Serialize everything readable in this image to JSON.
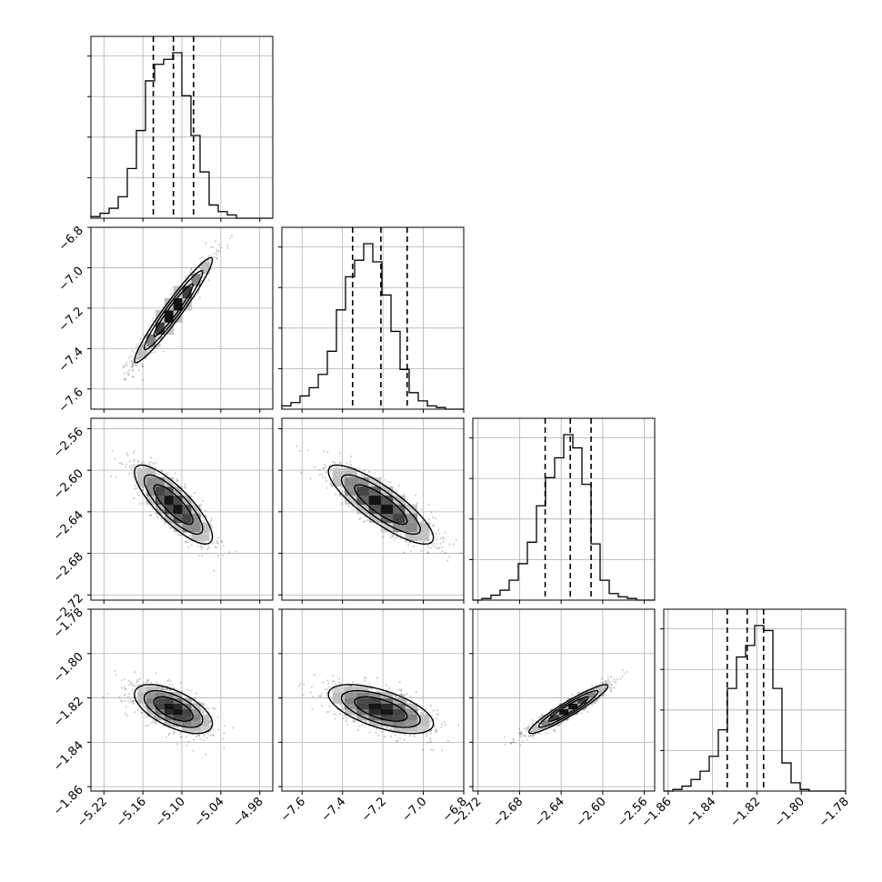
{
  "chart_data": {
    "type": "corner",
    "grid": true,
    "parameters": [
      {
        "index": 0,
        "range": [
          -5.24,
          -4.96
        ],
        "ticks": [
          -5.22,
          -5.16,
          -5.1,
          -5.04,
          -4.98
        ],
        "tick_labels": [
          "−5.22",
          "−5.16",
          "−5.10",
          "−5.04",
          "−4.98"
        ],
        "quantiles": [
          -5.144,
          -5.113,
          -5.082
        ]
      },
      {
        "index": 1,
        "range": [
          -7.7,
          -6.8
        ],
        "ticks": [
          -7.6,
          -7.4,
          -7.2,
          -7.0,
          -6.8
        ],
        "tick_labels": [
          "−7.6",
          "−7.4",
          "−7.2",
          "−7.0",
          "−6.8"
        ],
        "quantiles": [
          -7.35,
          -7.21,
          -7.08
        ]
      },
      {
        "index": 2,
        "range": [
          -2.725,
          -2.55
        ],
        "ticks": [
          -2.72,
          -2.68,
          -2.64,
          -2.6,
          -2.56
        ],
        "tick_labels": [
          "−2.72",
          "−2.68",
          "−2.64",
          "−2.60",
          "−2.56"
        ],
        "quantiles": [
          -2.6554,
          -2.6312,
          -2.6112
        ]
      },
      {
        "index": 3,
        "range": [
          -1.862,
          -1.78
        ],
        "ticks": [
          -1.86,
          -1.84,
          -1.82,
          -1.8,
          -1.78
        ],
        "tick_labels": [
          "−1.86",
          "−1.84",
          "−1.82",
          "−1.80",
          "−1.78"
        ],
        "quantiles": [
          -1.8334,
          -1.8244,
          -1.817
        ]
      }
    ],
    "histograms": [
      {
        "param": 0,
        "bin_start": -5.24,
        "bin_width": 0.014,
        "counts": [
          0.01,
          0.03,
          0.06,
          0.13,
          0.3,
          0.53,
          0.83,
          0.93,
          0.96,
          1.0,
          0.74,
          0.5,
          0.28,
          0.08,
          0.04,
          0.02,
          0.0,
          0.0,
          0.0,
          0.0
        ]
      },
      {
        "param": 1,
        "bin_start": -7.7,
        "bin_width": 0.045,
        "counts": [
          0.02,
          0.04,
          0.08,
          0.13,
          0.21,
          0.35,
          0.6,
          0.8,
          0.9,
          1.0,
          0.89,
          0.69,
          0.47,
          0.24,
          0.1,
          0.05,
          0.02,
          0.01,
          0.0,
          0.0
        ]
      },
      {
        "param": 2,
        "bin_start": -2.725,
        "bin_width": 0.00875,
        "counts": [
          0.0,
          0.01,
          0.03,
          0.06,
          0.12,
          0.22,
          0.35,
          0.57,
          0.74,
          0.86,
          1.0,
          0.92,
          0.7,
          0.34,
          0.12,
          0.04,
          0.02,
          0.01,
          0.0,
          0.0
        ]
      },
      {
        "param": 3,
        "bin_start": -1.862,
        "bin_width": 0.0041,
        "counts": [
          0.0,
          0.01,
          0.03,
          0.07,
          0.12,
          0.21,
          0.37,
          0.62,
          0.81,
          0.88,
          1.0,
          0.97,
          0.62,
          0.17,
          0.05,
          0.01,
          0.0,
          0.0,
          0.0,
          0.0
        ]
      }
    ],
    "pairs": [
      {
        "x_param": 0,
        "y_param": 1,
        "mean": [
          -5.113,
          -7.21
        ],
        "std": [
          0.03,
          0.13
        ],
        "corr": 0.96
      },
      {
        "x_param": 0,
        "y_param": 2,
        "mean": [
          -5.113,
          -2.633
        ],
        "std": [
          0.03,
          0.019
        ],
        "corr": -0.82
      },
      {
        "x_param": 1,
        "y_param": 2,
        "mean": [
          -7.21,
          -2.633
        ],
        "std": [
          0.13,
          0.019
        ],
        "corr": -0.84
      },
      {
        "x_param": 0,
        "y_param": 3,
        "mean": [
          -5.113,
          -1.825
        ],
        "std": [
          0.03,
          0.0055
        ],
        "corr": -0.6
      },
      {
        "x_param": 1,
        "y_param": 3,
        "mean": [
          -7.21,
          -1.825
        ],
        "std": [
          0.13,
          0.0055
        ],
        "corr": -0.6
      },
      {
        "x_param": 2,
        "y_param": 3,
        "mean": [
          -2.633,
          -1.825
        ],
        "std": [
          0.019,
          0.0055
        ],
        "corr": 0.94
      }
    ]
  }
}
